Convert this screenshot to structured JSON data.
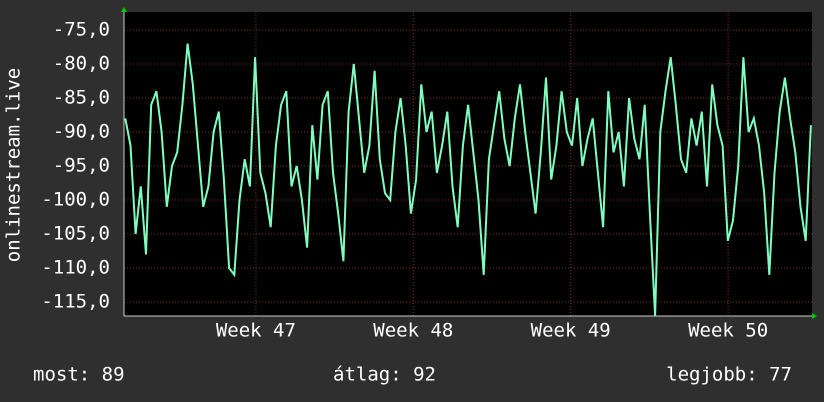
{
  "chart_data": {
    "type": "line",
    "y_label": "onlinestream.live",
    "x": [
      46.17,
      46.203,
      46.236,
      46.269,
      46.302,
      46.335,
      46.368,
      46.401,
      46.434,
      46.467,
      46.5,
      46.533,
      46.566,
      46.599,
      46.632,
      46.665,
      46.698,
      46.731,
      46.764,
      46.797,
      46.83,
      46.863,
      46.896,
      46.929,
      46.962,
      46.995,
      47.028,
      47.061,
      47.094,
      47.127,
      47.16,
      47.193,
      47.226,
      47.259,
      47.292,
      47.325,
      47.358,
      47.391,
      47.424,
      47.457,
      47.49,
      47.523,
      47.556,
      47.589,
      47.622,
      47.655,
      47.688,
      47.721,
      47.754,
      47.787,
      47.82,
      47.853,
      47.886,
      47.919,
      47.952,
      47.985,
      48.018,
      48.051,
      48.084,
      48.117,
      48.15,
      48.183,
      48.216,
      48.249,
      48.282,
      48.315,
      48.348,
      48.381,
      48.414,
      48.447,
      48.48,
      48.513,
      48.546,
      48.579,
      48.612,
      48.645,
      48.678,
      48.711,
      48.744,
      48.777,
      48.81,
      48.843,
      48.876,
      48.909,
      48.942,
      48.975,
      49.008,
      49.041,
      49.074,
      49.107,
      49.14,
      49.173,
      49.206,
      49.239,
      49.272,
      49.305,
      49.338,
      49.371,
      49.404,
      49.437,
      49.47,
      49.503,
      49.536,
      49.569,
      49.602,
      49.635,
      49.668,
      49.701,
      49.734,
      49.767,
      49.8,
      49.833,
      49.866,
      49.899,
      49.932,
      49.965,
      49.998,
      50.031,
      50.064,
      50.097,
      50.13,
      50.163,
      50.196,
      50.229,
      50.262,
      50.295,
      50.328,
      50.361,
      50.394,
      50.427,
      50.46,
      50.493,
      50.526
    ],
    "series": [
      {
        "name": "onlinestream.live",
        "color": "#7fffbf",
        "values": [
          -88,
          -92,
          -105,
          -98,
          -108,
          -86,
          -84,
          -90,
          -101,
          -95,
          -93,
          -86,
          -77,
          -83,
          -92,
          -101,
          -98,
          -90,
          -87,
          -97,
          -110,
          -111,
          -100,
          -94,
          -98,
          -79,
          -96,
          -99,
          -104,
          -92,
          -86,
          -84,
          -98,
          -95,
          -100,
          -107,
          -89,
          -97,
          -86,
          -84,
          -96,
          -102,
          -109,
          -87,
          -80,
          -88,
          -96,
          -92,
          -81,
          -94,
          -99,
          -100,
          -90,
          -85,
          -92,
          -102,
          -97,
          -83,
          -90,
          -87,
          -96,
          -92,
          -87,
          -98,
          -104,
          -92,
          -86,
          -93,
          -100,
          -111,
          -94,
          -89,
          -84,
          -91,
          -95,
          -88,
          -83,
          -90,
          -96,
          -102,
          -93,
          -82,
          -97,
          -92,
          -84,
          -90,
          -92,
          -85,
          -95,
          -91,
          -88,
          -96,
          -104,
          -84,
          -93,
          -90,
          -98,
          -85,
          -91,
          -94,
          -86,
          -102,
          -117,
          -90,
          -84,
          -79,
          -86,
          -94,
          -96,
          -88,
          -92,
          -87,
          -98,
          -83,
          -89,
          -92,
          -106,
          -103,
          -95,
          -79,
          -90,
          -88,
          -92,
          -99,
          -111,
          -96,
          -87,
          -82,
          -88,
          -93,
          -101,
          -106,
          -89
        ]
      }
    ],
    "xlim": [
      46.162,
      50.533
    ],
    "xticks": [
      {
        "value": 47,
        "label": "Week 47"
      },
      {
        "value": 48,
        "label": "Week 48"
      },
      {
        "value": 49,
        "label": "Week 49"
      },
      {
        "value": 50,
        "label": "Week 50"
      }
    ],
    "ylim": [
      -117.06,
      -72.35
    ],
    "yticks": [
      {
        "value": -75,
        "label": "-75,0"
      },
      {
        "value": -80,
        "label": "-80,0"
      },
      {
        "value": -85,
        "label": "-85,0"
      },
      {
        "value": -90,
        "label": "-90,0"
      },
      {
        "value": -95,
        "label": "-95,0"
      },
      {
        "value": -100,
        "label": "-100,0"
      },
      {
        "value": -105,
        "label": "-105,0"
      },
      {
        "value": -110,
        "label": "-110,0"
      },
      {
        "value": -115,
        "label": "-115,0"
      }
    ],
    "grid": true,
    "footer": [
      "most: 89",
      "átlag: 92",
      "legjobb: 77"
    ]
  }
}
